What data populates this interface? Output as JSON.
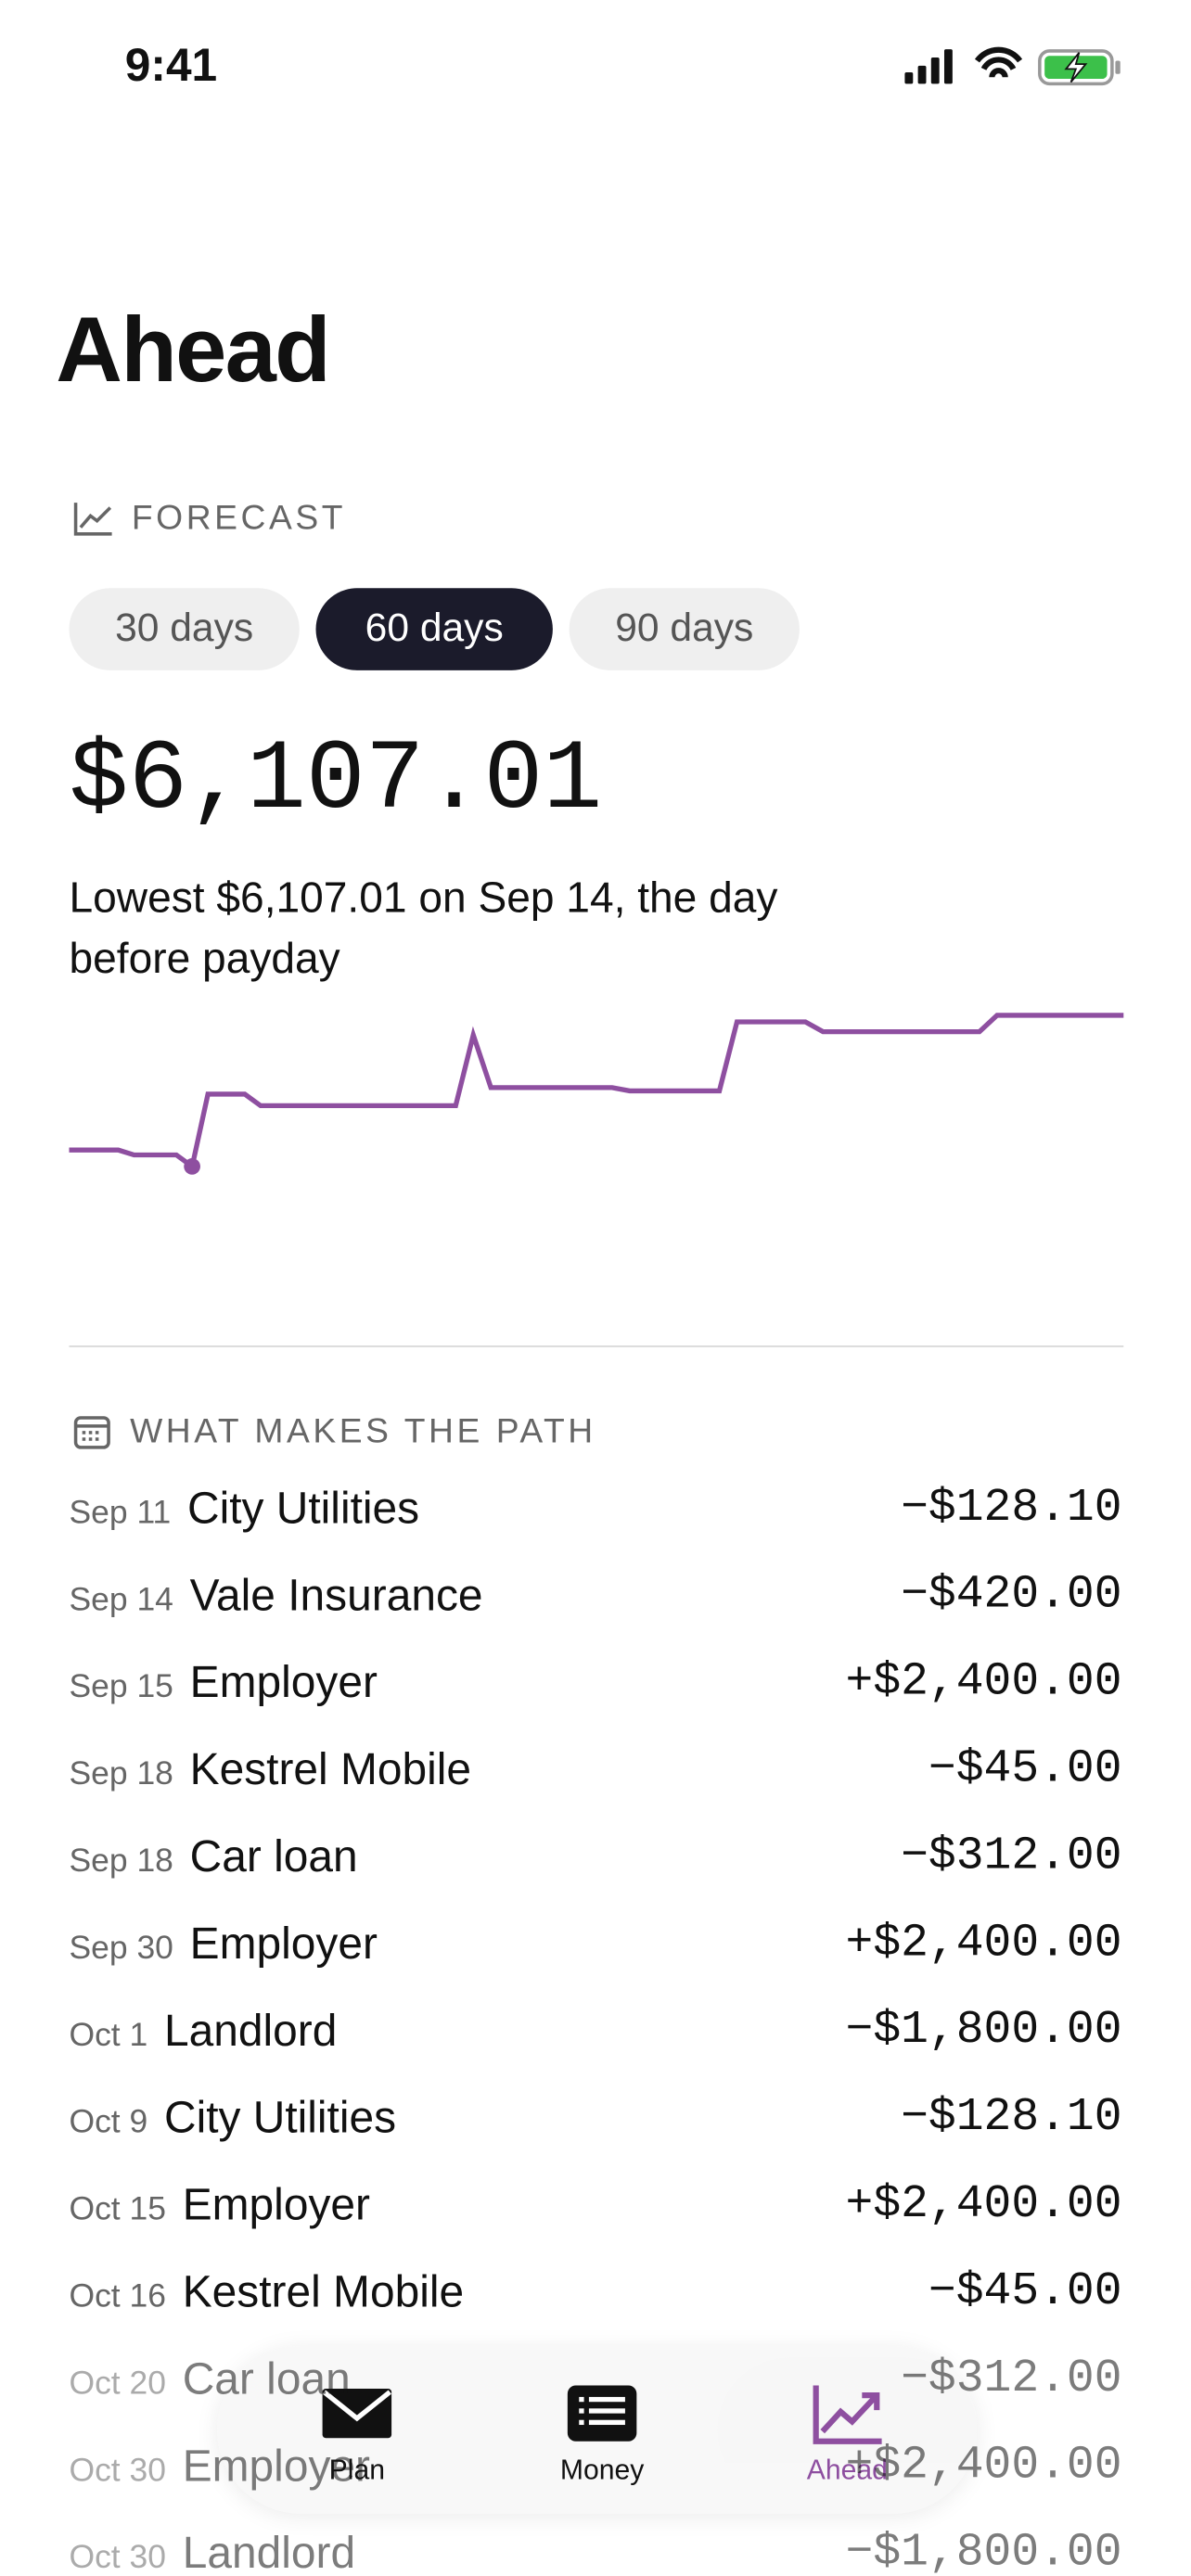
{
  "status_bar": {
    "time": "9:41"
  },
  "header": {
    "title": "Ahead"
  },
  "forecast": {
    "section_label": "FORECAST",
    "ranges": [
      "30 days",
      "60 days",
      "90 days"
    ],
    "selected_range": 1,
    "amount": "$6,107.01",
    "note": "Lowest $6,107.01 on Sep 14, the day before payday",
    "chart_data": {
      "type": "line",
      "color": "#8e4fa0",
      "x": [
        0,
        2.8,
        3.7,
        6.1,
        7,
        7.9,
        10,
        10.9,
        22,
        23,
        24,
        30.9,
        31.9,
        37,
        38,
        41.9,
        42.9,
        51.8,
        52.8,
        60
      ],
      "values": [
        6607,
        6607,
        6457,
        6457,
        6107.01,
        8307,
        8307,
        7957,
        7957,
        10107,
        8507,
        8507,
        8407,
        8407,
        10507,
        10507,
        10207,
        10207,
        10707,
        10707
      ],
      "lowest_index": 4
    }
  },
  "transactions": {
    "section_label": "WHAT MAKES THE PATH",
    "rows": [
      {
        "date": "Sep 11",
        "name": "City Utilities",
        "amount": "−$128.10"
      },
      {
        "date": "Sep 14",
        "name": "Vale Insurance",
        "amount": "−$420.00"
      },
      {
        "date": "Sep 15",
        "name": "Employer",
        "amount": "+$2,400.00"
      },
      {
        "date": "Sep 18",
        "name": "Kestrel Mobile",
        "amount": "−$45.00"
      },
      {
        "date": "Sep 18",
        "name": "Car loan",
        "amount": "−$312.00"
      },
      {
        "date": "Sep 30",
        "name": "Employer",
        "amount": "+$2,400.00"
      },
      {
        "date": "Oct 1",
        "name": "Landlord",
        "amount": "−$1,800.00"
      },
      {
        "date": "Oct 9",
        "name": "City Utilities",
        "amount": "−$128.10"
      },
      {
        "date": "Oct 15",
        "name": "Employer",
        "amount": "+$2,400.00"
      },
      {
        "date": "Oct 16",
        "name": "Kestrel Mobile",
        "amount": "−$45.00"
      },
      {
        "date": "Oct 20",
        "name": "Car loan",
        "amount": "−$312.00"
      },
      {
        "date": "Oct 30",
        "name": "Employer",
        "amount": "+$2,400.00"
      },
      {
        "date": "Oct 30",
        "name": "Landlord",
        "amount": "−$1,800.00"
      }
    ]
  },
  "tab_bar": {
    "tabs": [
      "Plan",
      "Money",
      "Ahead"
    ],
    "active": 2
  }
}
